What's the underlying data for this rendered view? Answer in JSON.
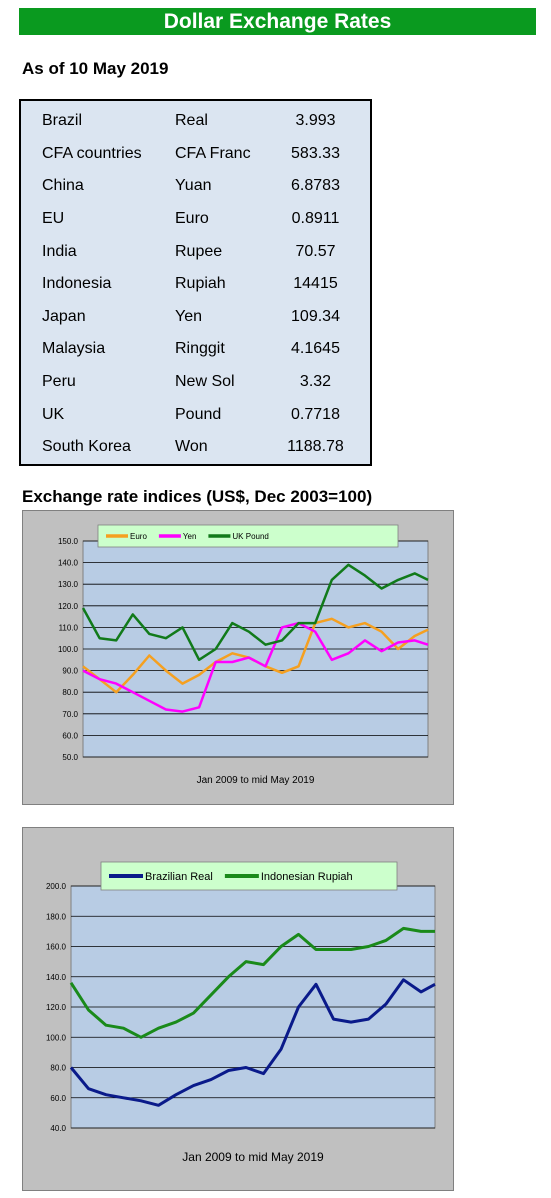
{
  "header": {
    "title": "Dollar Exchange Rates",
    "as_of": "As of 10 May 2019"
  },
  "rates": [
    {
      "country": "Brazil",
      "currency": "Real",
      "value": "3.993"
    },
    {
      "country": "CFA countries",
      "currency": "CFA Franc",
      "value": "583.33"
    },
    {
      "country": "China",
      "currency": "Yuan",
      "value": "6.8783"
    },
    {
      "country": "EU",
      "currency": "Euro",
      "value": "0.8911"
    },
    {
      "country": "India",
      "currency": "Rupee",
      "value": "70.57"
    },
    {
      "country": "Indonesia",
      "currency": "Rupiah",
      "value": "14415"
    },
    {
      "country": "Japan",
      "currency": "Yen",
      "value": "109.34"
    },
    {
      "country": "Malaysia",
      "currency": "Ringgit",
      "value": "4.1645"
    },
    {
      "country": "Peru",
      "currency": "New Sol",
      "value": "3.32"
    },
    {
      "country": "UK",
      "currency": "Pound",
      "value": "0.7718"
    },
    {
      "country": "South Korea",
      "currency": "Won",
      "value": "1188.78"
    }
  ],
  "section_title": "Exchange rate indices (US$, Dec 2003=100)",
  "colors": {
    "banner": "#0a9a1f",
    "table_bg": "#dbe5f1",
    "plot_bg": "#b8cce4",
    "euro": "#f5a020",
    "yen": "#ff00ff",
    "pound": "#117a1a",
    "real": "#0a1a8a",
    "rupiah": "#1a8a1a"
  },
  "chart_data": [
    {
      "type": "line",
      "xlabel": "Jan 2009  to mid May 2019",
      "ylim": [
        50,
        150
      ],
      "yticks": [
        "50.0",
        "60.0",
        "70.0",
        "80.0",
        "90.0",
        "100.0",
        "110.0",
        "120.0",
        "130.0",
        "140.0",
        "150.0"
      ],
      "x": [
        2009.0,
        2009.5,
        2010.0,
        2010.5,
        2011.0,
        2011.5,
        2012.0,
        2012.5,
        2013.0,
        2013.5,
        2014.0,
        2014.5,
        2015.0,
        2015.5,
        2016.0,
        2016.5,
        2017.0,
        2017.5,
        2018.0,
        2018.5,
        2019.0,
        2019.4
      ],
      "legend": "top",
      "series": [
        {
          "name": "Euro",
          "color": "#f5a020",
          "values": [
            92,
            86,
            80,
            88,
            97,
            90,
            84,
            88,
            94,
            98,
            96,
            92,
            89,
            92,
            112,
            114,
            110,
            112,
            108,
            100,
            106,
            109
          ]
        },
        {
          "name": "Yen",
          "color": "#ff00ff",
          "values": [
            90,
            86,
            84,
            80,
            76,
            72,
            71,
            73,
            94,
            94,
            96,
            92,
            110,
            112,
            108,
            95,
            98,
            104,
            99,
            103,
            104,
            102
          ]
        },
        {
          "name": "UK Pound",
          "color": "#117a1a",
          "values": [
            119,
            105,
            104,
            116,
            107,
            105,
            110,
            95,
            100,
            112,
            108,
            102,
            104,
            112,
            112,
            132,
            139,
            134,
            128,
            132,
            135,
            132
          ]
        }
      ]
    },
    {
      "type": "line",
      "xlabel": "Jan 2009  to mid May 2019",
      "ylim": [
        40,
        200
      ],
      "yticks": [
        "40.0",
        "60.0",
        "80.0",
        "100.0",
        "120.0",
        "140.0",
        "160.0",
        "180.0",
        "200.0"
      ],
      "x": [
        2009.0,
        2009.5,
        2010.0,
        2010.5,
        2011.0,
        2011.5,
        2012.0,
        2012.5,
        2013.0,
        2013.5,
        2014.0,
        2014.5,
        2015.0,
        2015.5,
        2016.0,
        2016.5,
        2017.0,
        2017.5,
        2018.0,
        2018.5,
        2019.0,
        2019.4
      ],
      "legend": "top",
      "series": [
        {
          "name": "Brazilian Real",
          "color": "#0a1a8a",
          "values": [
            80,
            66,
            62,
            60,
            58,
            55,
            62,
            68,
            72,
            78,
            80,
            76,
            92,
            120,
            135,
            112,
            110,
            112,
            122,
            138,
            130,
            135
          ]
        },
        {
          "name": "Indonesian Rupiah",
          "color": "#1a8a1a",
          "values": [
            136,
            118,
            108,
            106,
            100,
            106,
            110,
            116,
            128,
            140,
            150,
            148,
            160,
            168,
            158,
            158,
            158,
            160,
            164,
            172,
            170,
            170
          ]
        }
      ]
    }
  ]
}
